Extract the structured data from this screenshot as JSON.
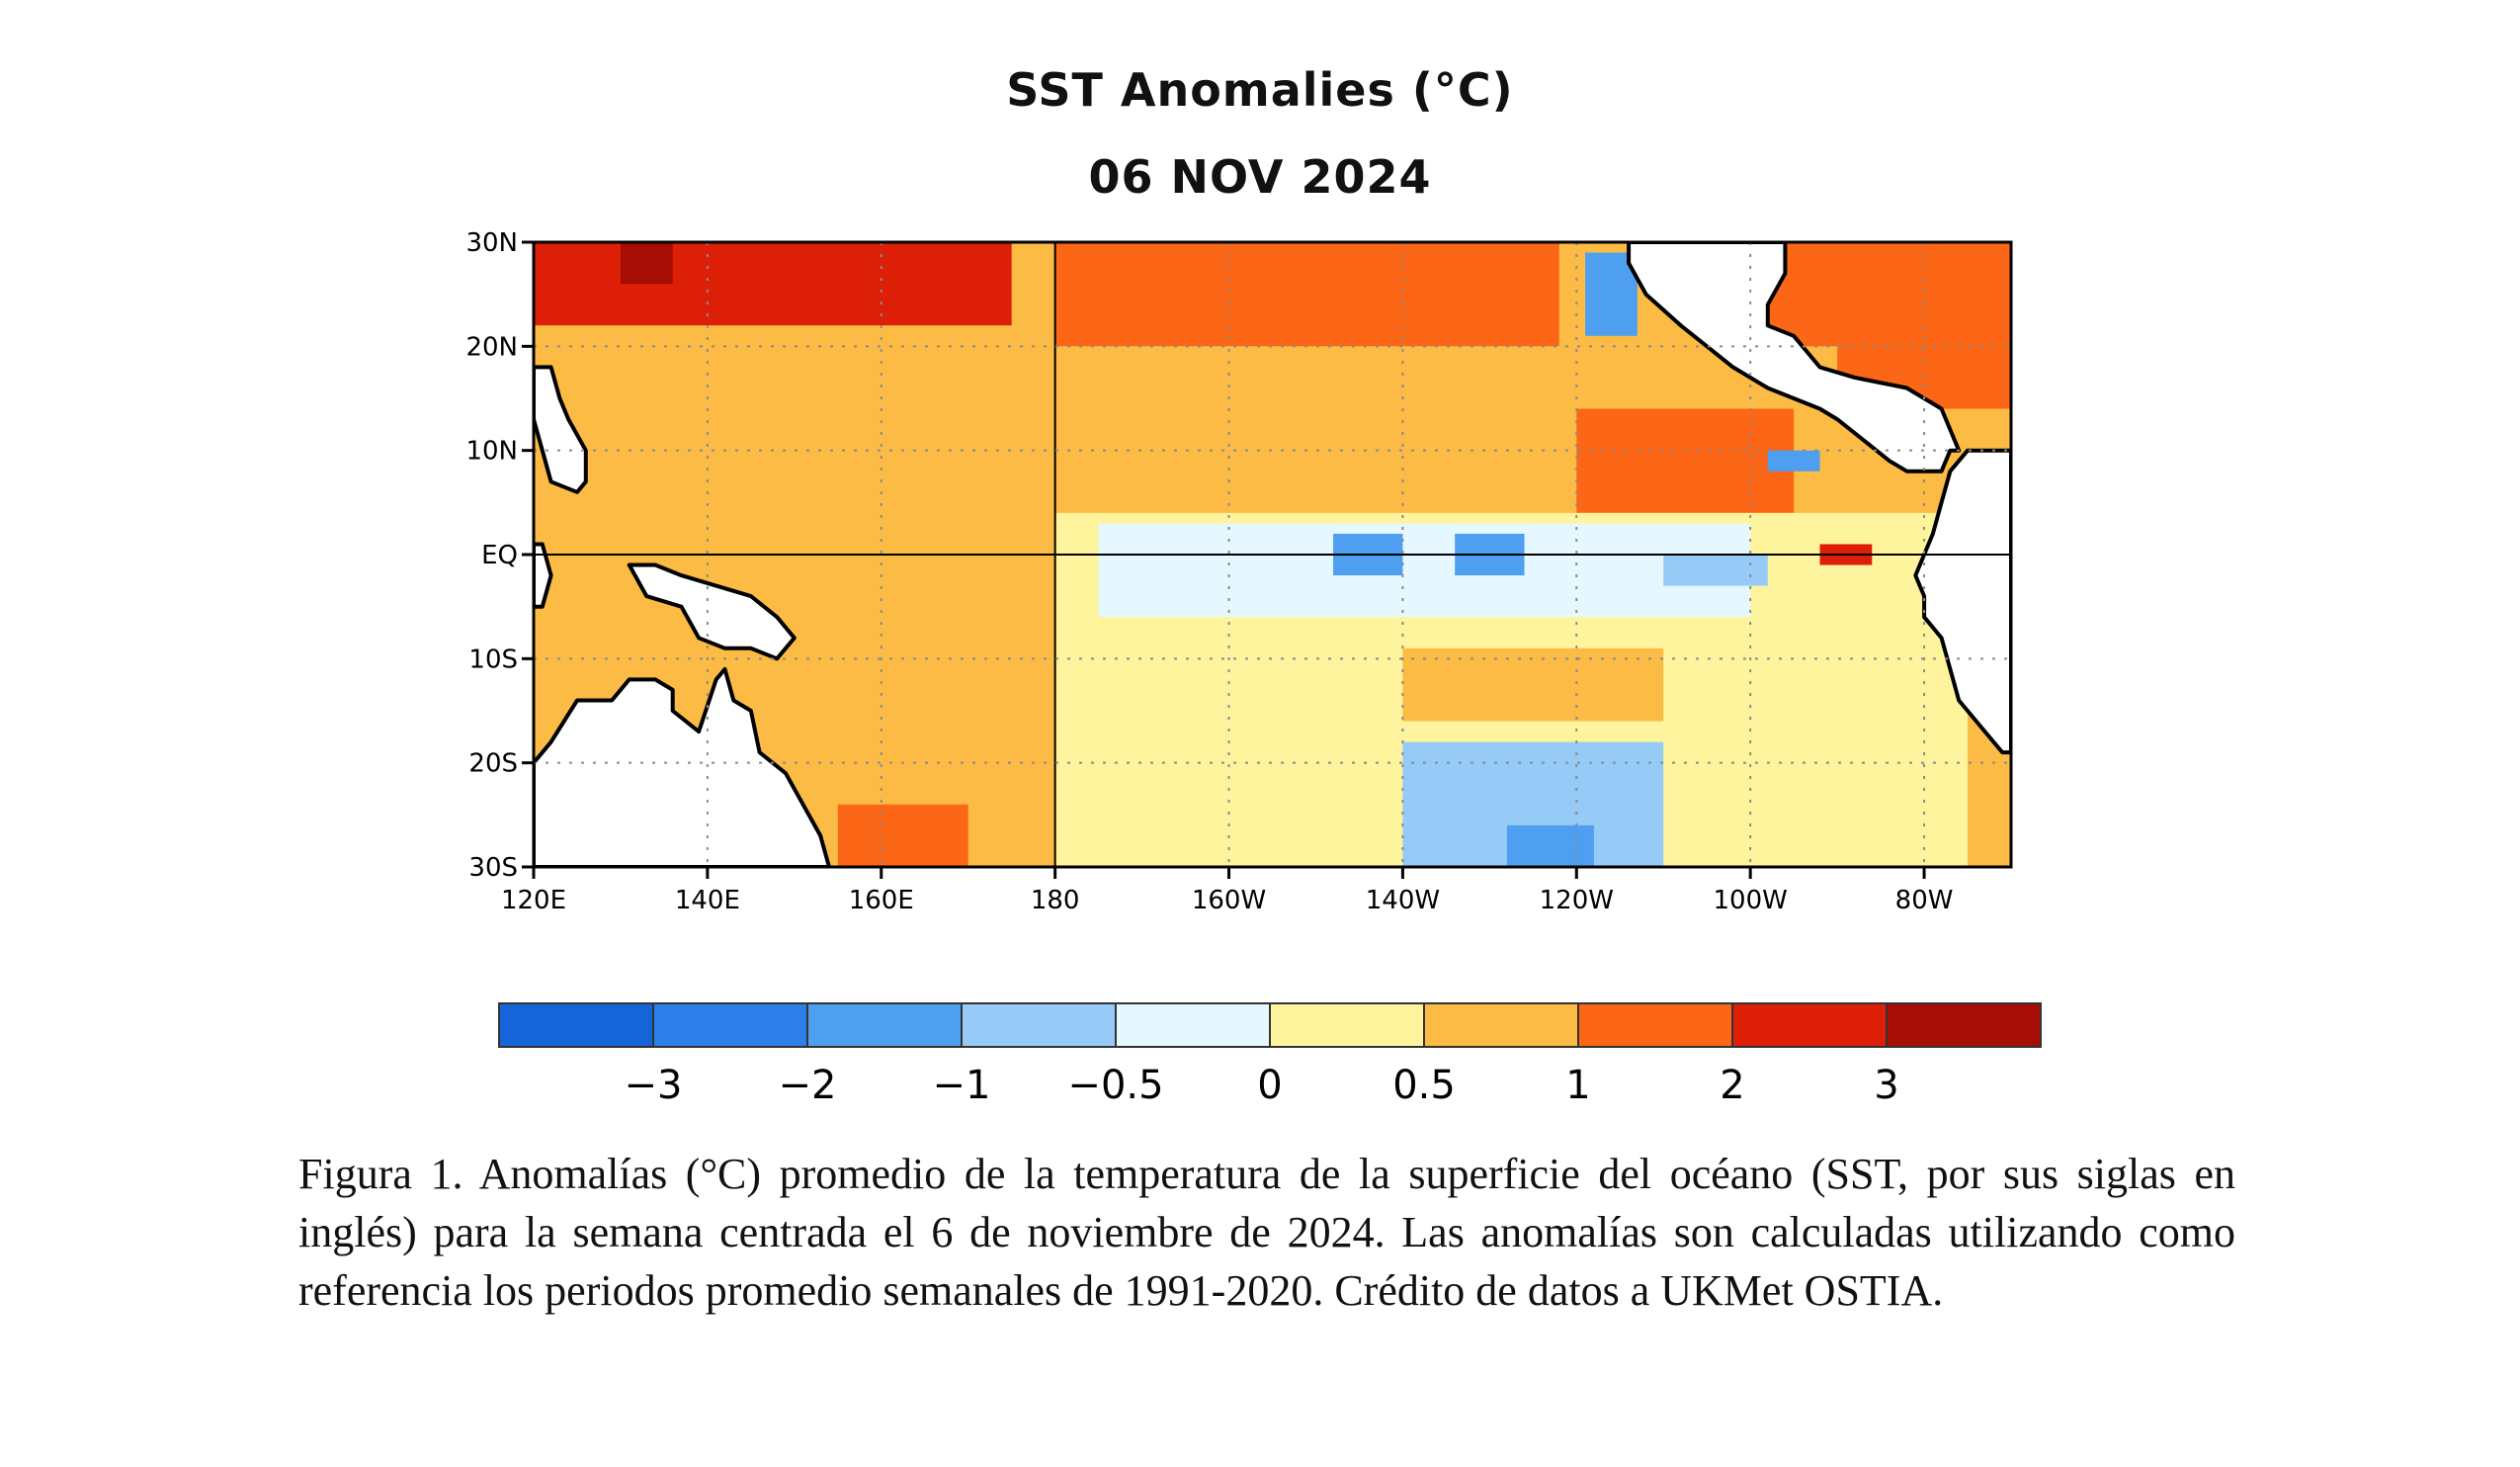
{
  "chart_data": {
    "type": "heatmap",
    "title": "SST Anomalies (°C)",
    "subtitle": "06 NOV 2024",
    "xlabel": "",
    "ylabel": "",
    "x_ticks": [
      "120E",
      "140E",
      "160E",
      "180",
      "160W",
      "140W",
      "120W",
      "100W",
      "80W"
    ],
    "x_tick_values": [
      120,
      140,
      160,
      180,
      200,
      220,
      240,
      260,
      280
    ],
    "y_ticks": [
      "30N",
      "20N",
      "10N",
      "EQ",
      "10S",
      "20S",
      "30S"
    ],
    "y_tick_values": [
      30,
      20,
      10,
      0,
      -10,
      -20,
      -30
    ],
    "xlim": [
      120,
      290
    ],
    "ylim": [
      -30,
      30
    ],
    "grid": true,
    "colorbar": {
      "labels": [
        "−3",
        "−2",
        "−1",
        "−0.5",
        "0",
        "0.5",
        "1",
        "2",
        "3"
      ],
      "boundaries": [
        -3,
        -2,
        -1,
        -0.5,
        0,
        0.5,
        1,
        2,
        3
      ],
      "colors": [
        "#1565d8",
        "#2c7fe8",
        "#4f9ff0",
        "#96cbf7",
        "#e6f8ff",
        "#fef49d",
        "#fbbb45",
        "#fb6617",
        "#de1f08",
        "#a60d04"
      ]
    },
    "regions": [
      {
        "lon": [
          120,
          175
        ],
        "lat": [
          22,
          30
        ],
        "value": 2.2
      },
      {
        "lon": [
          130,
          136
        ],
        "lat": [
          26,
          30
        ],
        "value": 3.2
      },
      {
        "lon": [
          180,
          238
        ],
        "lat": [
          20,
          30
        ],
        "value": 1.6
      },
      {
        "lon": [
          258,
          290
        ],
        "lat": [
          14,
          30
        ],
        "value": 1.8
      },
      {
        "lon": [
          120,
          180
        ],
        "lat": [
          -30,
          22
        ],
        "value": 0.6
      },
      {
        "lon": [
          150,
          180
        ],
        "lat": [
          -30,
          12
        ],
        "value": 0.9
      },
      {
        "lon": [
          155,
          170
        ],
        "lat": [
          -30,
          -24
        ],
        "value": 1.8
      },
      {
        "lon": [
          180,
          270
        ],
        "lat": [
          4,
          20
        ],
        "value": 0.7
      },
      {
        "lon": [
          240,
          265
        ],
        "lat": [
          4,
          14
        ],
        "value": 1.1
      },
      {
        "lon": [
          180,
          285
        ],
        "lat": [
          -30,
          4
        ],
        "value": 0.3
      },
      {
        "lon": [
          185,
          260
        ],
        "lat": [
          -6,
          3
        ],
        "value": -0.4
      },
      {
        "lon": [
          212,
          220
        ],
        "lat": [
          -2,
          2
        ],
        "value": -1.3
      },
      {
        "lon": [
          226,
          234
        ],
        "lat": [
          -2,
          2
        ],
        "value": -1.1
      },
      {
        "lon": [
          250,
          262
        ],
        "lat": [
          -3,
          0
        ],
        "value": -0.9
      },
      {
        "lon": [
          241,
          247
        ],
        "lat": [
          21,
          29
        ],
        "value": -1.2
      },
      {
        "lon": [
          262,
          268
        ],
        "lat": [
          8,
          10
        ],
        "value": -1.3
      },
      {
        "lon": [
          220,
          250
        ],
        "lat": [
          -30,
          -18
        ],
        "value": -0.6
      },
      {
        "lon": [
          232,
          242
        ],
        "lat": [
          -30,
          -26
        ],
        "value": -1.1
      },
      {
        "lon": [
          268,
          274
        ],
        "lat": [
          -1,
          1
        ],
        "value": 2.2
      },
      {
        "lon": [
          220,
          250
        ],
        "lat": [
          -16,
          -9
        ],
        "value": 0.9
      }
    ]
  },
  "caption": "Figura 1. Anomalías (°C) promedio de la temperatura de la superficie del océano (SST, por sus siglas en inglés) para la semana centrada el 6 de noviembre de 2024. Las anomalías son calculadas utilizando como referencia los periodos promedio semanales de 1991-2020. Crédito de datos a UKMet OSTIA."
}
